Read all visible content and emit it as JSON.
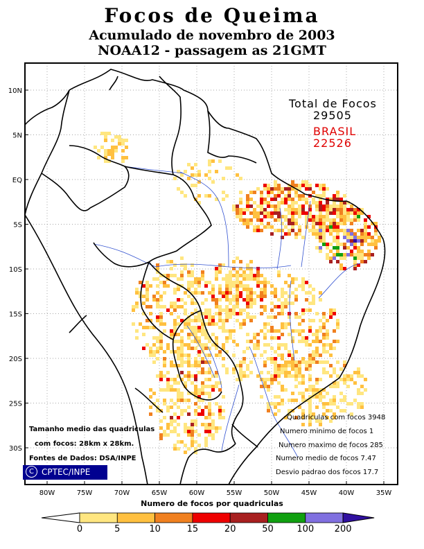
{
  "title": {
    "line1": "Focos de Queima",
    "line2": "Acumulado de novembro de 2003",
    "line3": "NOAA12 - passagem as 21GMT"
  },
  "totals": {
    "total_label": "Total de Focos",
    "total_value": "29505",
    "country_label": "BRASIL",
    "country_value": "22526",
    "country_color": "#e00000"
  },
  "stats": [
    "Quadriculas com focos 3948",
    "Numero minimo de focos 1",
    "Numero maximo de focos 285",
    "Numero medio de focos 7.47",
    "Desvio padrao dos focos 17.7"
  ],
  "notes": {
    "grid_size_1": "Tamanho medio das quadriculas",
    "grid_size_2": "com focos: 28km x 28km.",
    "sources": "Fontes de Dados: DSA/INPE",
    "credit": "CPTEC/INPE",
    "copyright_symbol": "C"
  },
  "axes": {
    "lat_labels": [
      "10N",
      "5N",
      "EQ",
      "5S",
      "10S",
      "15S",
      "20S",
      "25S",
      "30S"
    ],
    "lon_labels": [
      "80W",
      "75W",
      "70W",
      "65W",
      "60W",
      "55W",
      "50W",
      "45W",
      "40W",
      "35W"
    ],
    "lat_values": [
      10,
      5,
      0,
      -5,
      -10,
      -15,
      -20,
      -25,
      -30
    ],
    "lon_values": [
      -80,
      -75,
      -70,
      -65,
      -60,
      -55,
      -50,
      -45,
      -40,
      -35
    ]
  },
  "legend": {
    "label": "Numero de focos por quadriculas",
    "tick_labels": [
      "0",
      "5",
      "10",
      "15",
      "20",
      "50",
      "100",
      "200"
    ],
    "colors": [
      "#ffe680",
      "#ffc040",
      "#f08020",
      "#ee0000",
      "#a82020",
      "#10a010",
      "#8070e0"
    ],
    "low_color": "#ffffff",
    "high_color": "#3010a0"
  }
}
